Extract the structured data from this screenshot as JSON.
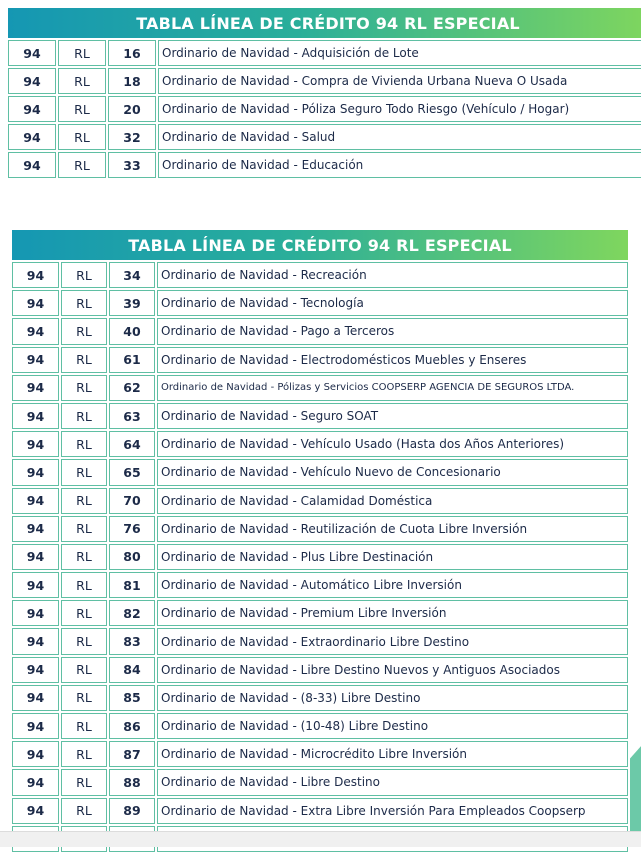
{
  "colors": {
    "header_gradient_start": "#1597b3",
    "header_gradient_end": "#7fd65e",
    "border": "#5fbfa3",
    "text": "#1c2a48"
  },
  "tables": [
    {
      "title": "TABLA LÍNEA DE CRÉDITO 94 RL ESPECIAL",
      "rows": [
        [
          "94",
          "RL",
          "16",
          "Ordinario de Navidad - Adquisición de Lote"
        ],
        [
          "94",
          "RL",
          "18",
          "Ordinario de Navidad - Compra de Vivienda Urbana Nueva O Usada"
        ],
        [
          "94",
          "RL",
          "20",
          "Ordinario de Navidad - Póliza Seguro Todo Riesgo (Vehículo / Hogar)"
        ],
        [
          "94",
          "RL",
          "32",
          "Ordinario de Navidad - Salud"
        ],
        [
          "94",
          "RL",
          "33",
          "Ordinario de Navidad - Educación"
        ]
      ]
    },
    {
      "title": "TABLA LÍNEA DE CRÉDITO 94 RL ESPECIAL",
      "rows": [
        [
          "94",
          "RL",
          "34",
          "Ordinario de Navidad - Recreación"
        ],
        [
          "94",
          "RL",
          "39",
          "Ordinario de Navidad - Tecnología"
        ],
        [
          "94",
          "RL",
          "40",
          "Ordinario de Navidad - Pago a Terceros"
        ],
        [
          "94",
          "RL",
          "61",
          "Ordinario de Navidad - Electrodomésticos Muebles y Enseres"
        ],
        [
          "94",
          "RL",
          "62",
          "Ordinario de Navidad - Pólizas y Servicios COOPSERP AGENCIA DE SEGUROS LTDA."
        ],
        [
          "94",
          "RL",
          "63",
          "Ordinario de Navidad - Seguro SOAT"
        ],
        [
          "94",
          "RL",
          "64",
          "Ordinario de Navidad - Vehículo Usado (Hasta dos Años Anteriores)"
        ],
        [
          "94",
          "RL",
          "65",
          "Ordinario de Navidad - Vehículo Nuevo de Concesionario"
        ],
        [
          "94",
          "RL",
          "70",
          "Ordinario de Navidad - Calamidad Doméstica"
        ],
        [
          "94",
          "RL",
          "76",
          "Ordinario de Navidad - Reutilización de Cuota Libre Inversión"
        ],
        [
          "94",
          "RL",
          "80",
          "Ordinario de Navidad - Plus Libre Destinación"
        ],
        [
          "94",
          "RL",
          "81",
          "Ordinario de Navidad - Automático Libre Inversión"
        ],
        [
          "94",
          "RL",
          "82",
          "Ordinario de Navidad - Premium Libre Inversión"
        ],
        [
          "94",
          "RL",
          "83",
          "Ordinario de Navidad - Extraordinario Libre Destino"
        ],
        [
          "94",
          "RL",
          "84",
          "Ordinario de Navidad - Libre Destino Nuevos y Antiguos Asociados"
        ],
        [
          "94",
          "RL",
          "85",
          "Ordinario de Navidad - (8-33) Libre Destino"
        ],
        [
          "94",
          "RL",
          "86",
          "Ordinario de Navidad - (10-48) Libre Destino"
        ],
        [
          "94",
          "RL",
          "87",
          "Ordinario de Navidad - Microcrédito Libre Inversión"
        ],
        [
          "94",
          "RL",
          "88",
          "Ordinario de Navidad - Libre Destino"
        ],
        [
          "94",
          "RL",
          "89",
          "Ordinario de Navidad - Extra Libre Inversión Para Empleados Coopserp"
        ],
        [
          "",
          "",
          "",
          ""
        ]
      ]
    }
  ]
}
